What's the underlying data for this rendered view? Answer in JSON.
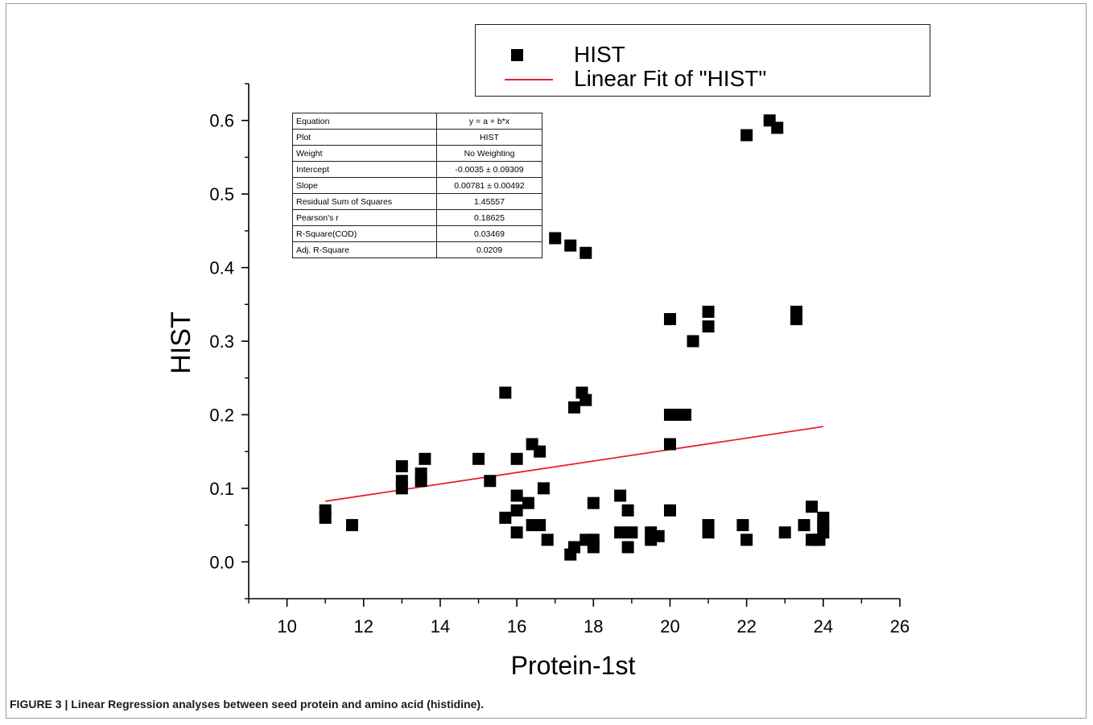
{
  "caption": {
    "label": "FIGURE 3 |",
    "text": "Linear Regression analyses between seed protein and amino acid (histidine)."
  },
  "legend": {
    "position": "top-right",
    "entries": [
      {
        "label": "HIST",
        "marker": "square",
        "color": "#000000"
      },
      {
        "label": "Linear Fit of \"HIST\"",
        "marker": "line",
        "color": "#e8202a"
      }
    ]
  },
  "stats_table": [
    {
      "key": "Equation",
      "value": "y = a + b*x"
    },
    {
      "key": "Plot",
      "value": "HIST"
    },
    {
      "key": "Weight",
      "value": "No Weighting"
    },
    {
      "key": "Intercept",
      "value": "-0.0035 ± 0.09309"
    },
    {
      "key": "Slope",
      "value": "0.00781 ± 0.00492"
    },
    {
      "key": "Residual Sum of Squares",
      "value": "1.45557"
    },
    {
      "key": "Pearson's r",
      "value": "0.18625"
    },
    {
      "key": "R-Square(COD)",
      "value": "0.03469"
    },
    {
      "key": "Adj. R-Square",
      "value": "0.0209"
    }
  ],
  "chart_data": {
    "type": "scatter",
    "xlabel": "Protein-1st",
    "ylabel": "HIST",
    "xlim": [
      9,
      26
    ],
    "ylim": [
      -0.05,
      0.65
    ],
    "xticks": [
      10,
      12,
      14,
      16,
      18,
      20,
      22,
      24,
      26
    ],
    "yticks": [
      0.0,
      0.1,
      0.2,
      0.3,
      0.4,
      0.5,
      0.6
    ],
    "ytick_labels": [
      "0.0",
      "0.1",
      "0.2",
      "0.3",
      "0.4",
      "0.5",
      "0.6"
    ],
    "grid": false,
    "series": [
      {
        "name": "HIST",
        "marker": "square",
        "color": "#000000",
        "points": [
          [
            11,
            0.07
          ],
          [
            11,
            0.06
          ],
          [
            11.7,
            0.05
          ],
          [
            13,
            0.13
          ],
          [
            13,
            0.11
          ],
          [
            13,
            0.1
          ],
          [
            13.5,
            0.12
          ],
          [
            13.5,
            0.11
          ],
          [
            13.6,
            0.14
          ],
          [
            15,
            0.14
          ],
          [
            15.3,
            0.11
          ],
          [
            15.7,
            0.23
          ],
          [
            15.7,
            0.06
          ],
          [
            16,
            0.14
          ],
          [
            16,
            0.09
          ],
          [
            16,
            0.07
          ],
          [
            16,
            0.04
          ],
          [
            16.3,
            0.08
          ],
          [
            16.4,
            0.16
          ],
          [
            16.4,
            0.05
          ],
          [
            16.6,
            0.15
          ],
          [
            16.6,
            0.05
          ],
          [
            16.7,
            0.1
          ],
          [
            16.8,
            0.03
          ],
          [
            17,
            0.44
          ],
          [
            17.4,
            0.43
          ],
          [
            17.4,
            0.01
          ],
          [
            17.5,
            0.21
          ],
          [
            17.5,
            0.02
          ],
          [
            17.7,
            0.23
          ],
          [
            17.8,
            0.22
          ],
          [
            17.8,
            0.42
          ],
          [
            17.8,
            0.03
          ],
          [
            18,
            0.08
          ],
          [
            18,
            0.03
          ],
          [
            18,
            0.02
          ],
          [
            18.7,
            0.09
          ],
          [
            18.7,
            0.04
          ],
          [
            18.9,
            0.07
          ],
          [
            18.9,
            0.02
          ],
          [
            19,
            0.04
          ],
          [
            19.5,
            0.03
          ],
          [
            19.5,
            0.04
          ],
          [
            19.7,
            0.035
          ],
          [
            20,
            0.33
          ],
          [
            20,
            0.2
          ],
          [
            20,
            0.16
          ],
          [
            20,
            0.07
          ],
          [
            20.2,
            0.2
          ],
          [
            20.4,
            0.2
          ],
          [
            20.6,
            0.3
          ],
          [
            21,
            0.34
          ],
          [
            21,
            0.32
          ],
          [
            21,
            0.05
          ],
          [
            21,
            0.04
          ],
          [
            21.9,
            0.05
          ],
          [
            22,
            0.58
          ],
          [
            22,
            0.03
          ],
          [
            22.6,
            0.6
          ],
          [
            22.8,
            0.59
          ],
          [
            23,
            0.04
          ],
          [
            23.3,
            0.34
          ],
          [
            23.3,
            0.33
          ],
          [
            23.5,
            0.05
          ],
          [
            23.7,
            0.075
          ],
          [
            23.7,
            0.03
          ],
          [
            23.8,
            0.03
          ],
          [
            23.9,
            0.03
          ],
          [
            24,
            0.06
          ],
          [
            24,
            0.05
          ],
          [
            24,
            0.04
          ]
        ]
      },
      {
        "name": "Linear Fit of \"HIST\"",
        "type": "line",
        "color": "#e8202a",
        "x": [
          11,
          24
        ],
        "y": [
          0.0824,
          0.1839
        ]
      }
    ]
  }
}
